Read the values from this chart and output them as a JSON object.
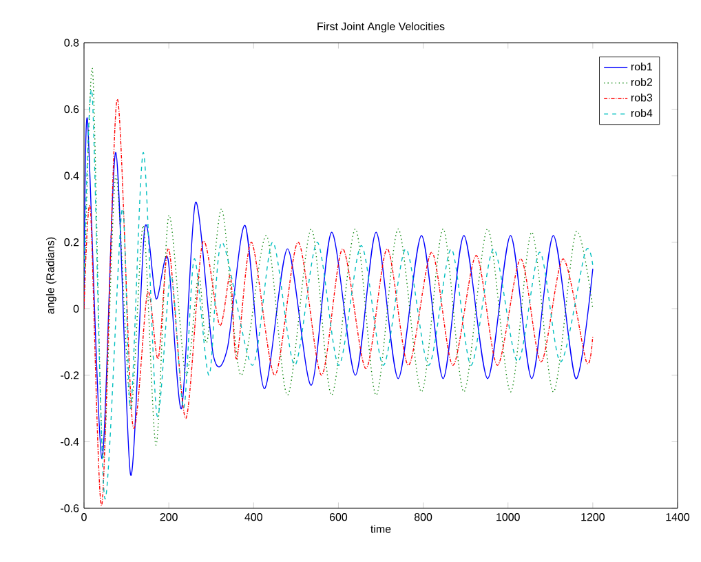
{
  "chart_data": {
    "type": "line",
    "title": "First Joint Angle Velocities",
    "xlabel": "time",
    "ylabel": "angle (Radians)",
    "xlim": [
      0,
      1400
    ],
    "xticks": [
      0,
      200,
      400,
      600,
      800,
      1000,
      1200,
      1400
    ],
    "ylim": [
      -0.6,
      0.8
    ],
    "yticks": [
      -0.6,
      -0.4,
      -0.2,
      0,
      0.2,
      0.4,
      0.6,
      0.8
    ],
    "legend": "top right",
    "grid": false,
    "series": [
      {
        "name": "rob1",
        "color": "#0000ff",
        "line_style": "solid",
        "x": [
          0,
          8,
          42,
          75,
          110,
          143,
          170,
          198,
          230,
          263,
          305,
          338,
          380,
          425,
          480,
          536,
          584,
          640,
          689,
          741,
          796,
          847,
          896,
          952,
          1006,
          1056,
          1107,
          1160,
          1200
        ],
        "values": [
          0,
          0.57,
          -0.45,
          0.47,
          -0.5,
          0.24,
          0.03,
          0.15,
          -0.3,
          0.32,
          -0.14,
          -0.12,
          0.25,
          -0.24,
          0.18,
          -0.23,
          0.23,
          -0.2,
          0.23,
          -0.21,
          0.22,
          -0.21,
          0.22,
          -0.21,
          0.22,
          -0.21,
          0.22,
          -0.21,
          0.12
        ]
      },
      {
        "name": "rob2",
        "color": "#008000",
        "line_style": "dotted",
        "x": [
          0,
          20,
          45,
          75,
          110,
          140,
          170,
          200,
          240,
          270,
          290,
          325,
          370,
          430,
          480,
          536,
          584,
          640,
          689,
          741,
          796,
          847,
          896,
          952,
          1006,
          1056,
          1107,
          1160,
          1200
        ],
        "values": [
          0,
          0.72,
          -0.45,
          0.4,
          -0.3,
          0.25,
          -0.41,
          0.28,
          -0.2,
          0.1,
          -0.1,
          0.3,
          -0.2,
          0.22,
          -0.26,
          0.24,
          -0.26,
          0.24,
          -0.26,
          0.24,
          -0.25,
          0.24,
          -0.25,
          0.24,
          -0.25,
          0.23,
          -0.25,
          0.23,
          0
        ]
      },
      {
        "name": "rob3",
        "color": "#ff0000",
        "line_style": "dashdot",
        "x": [
          0,
          15,
          42,
          78,
          115,
          150,
          175,
          200,
          240,
          280,
          320,
          345,
          360,
          395,
          450,
          505,
          560,
          610,
          665,
          715,
          765,
          820,
          870,
          925,
          975,
          1030,
          1078,
          1130,
          1185,
          1200
        ],
        "values": [
          0,
          0.3,
          -0.59,
          0.63,
          -0.35,
          0.05,
          -0.15,
          0.18,
          -0.33,
          0.2,
          -0.05,
          0.1,
          -0.15,
          0.2,
          -0.2,
          0.2,
          -0.2,
          0.18,
          -0.18,
          0.18,
          -0.17,
          0.17,
          -0.17,
          0.16,
          -0.17,
          0.15,
          -0.16,
          0.15,
          -0.16,
          -0.08
        ]
      },
      {
        "name": "rob4",
        "color": "#00bfbf",
        "line_style": "dashed",
        "x": [
          0,
          19,
          49,
          90,
          110,
          140,
          172,
          205,
          235,
          260,
          295,
          325,
          397,
          445,
          497,
          550,
          601,
          654,
          706,
          759,
          813,
          866,
          913,
          966,
          1023,
          1075,
          1124,
          1182,
          1200
        ],
        "values": [
          0.1,
          0.65,
          -0.57,
          0.3,
          -0.3,
          0.47,
          -0.32,
          0.1,
          -0.3,
          0.15,
          -0.2,
          0.2,
          -0.17,
          0.2,
          -0.17,
          0.2,
          -0.17,
          0.19,
          -0.17,
          0.18,
          -0.17,
          0.18,
          -0.17,
          0.18,
          -0.16,
          0.17,
          -0.16,
          0.17,
          0.13
        ]
      }
    ]
  }
}
